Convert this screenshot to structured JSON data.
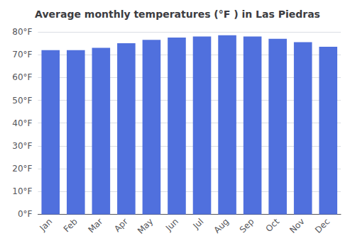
{
  "chart_data": {
    "type": "bar",
    "title": "Average monthly temperatures (°F ) in Las Piedras",
    "categories": [
      "Jan",
      "Feb",
      "Mar",
      "Apr",
      "May",
      "Jun",
      "Jul",
      "Aug",
      "Sep",
      "Oct",
      "Nov",
      "Dec"
    ],
    "values": [
      72,
      72,
      73,
      75,
      76.5,
      77.5,
      78,
      78.5,
      78,
      77,
      75.5,
      73.5
    ],
    "ylim": [
      0,
      80
    ],
    "yticks": [
      {
        "value": 0,
        "label": "0°F"
      },
      {
        "value": 10,
        "label": "10°F"
      },
      {
        "value": 20,
        "label": "20°F"
      },
      {
        "value": 30,
        "label": "30°F"
      },
      {
        "value": 40,
        "label": "40°F"
      },
      {
        "value": 50,
        "label": "50°F"
      },
      {
        "value": 60,
        "label": "60°F"
      },
      {
        "value": 70,
        "label": "70°F"
      },
      {
        "value": 80,
        "label": "80°F"
      }
    ],
    "grid": true
  }
}
